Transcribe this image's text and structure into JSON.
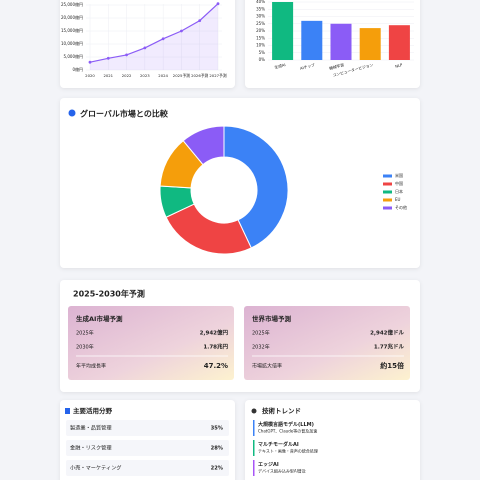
{
  "chart_data": [
    {
      "type": "line",
      "categories": [
        "2020",
        "2021",
        "2022",
        "2023",
        "2024",
        "2025予測",
        "2026予測",
        "2027予測"
      ],
      "values": [
        3000,
        4500,
        5800,
        8500,
        12000,
        15000,
        19000,
        25500
      ],
      "color": "#8b5cf6",
      "ylim": [
        0,
        26000
      ],
      "yticks": [
        {
          "value": 0,
          "label": "0億円"
        },
        {
          "value": 5000,
          "label": "5,000億円"
        },
        {
          "value": 10000,
          "label": "10,000億円"
        },
        {
          "value": 15000,
          "label": "15,000億円"
        },
        {
          "value": 20000,
          "label": "20,000億円"
        },
        {
          "value": 25000,
          "label": "25,000億円"
        }
      ],
      "grid": true
    },
    {
      "type": "bar",
      "categories": [
        "生成AI",
        "AIチップ",
        "機械学習",
        "コンピュータービジョン",
        "NLP"
      ],
      "values": [
        40,
        27,
        25,
        22,
        24
      ],
      "colors": [
        "#10b981",
        "#3b82f6",
        "#8b5cf6",
        "#f59e0b",
        "#ef4444"
      ],
      "ylim": [
        0,
        40
      ],
      "yticks": [
        {
          "value": 0,
          "label": "0%"
        },
        {
          "value": 5,
          "label": "5%"
        },
        {
          "value": 10,
          "label": "10%"
        },
        {
          "value": 15,
          "label": "15%"
        },
        {
          "value": 20,
          "label": "20%"
        },
        {
          "value": 25,
          "label": "25%"
        },
        {
          "value": 30,
          "label": "30%"
        },
        {
          "value": 35,
          "label": "35%"
        },
        {
          "value": 40,
          "label": "40%"
        }
      ],
      "grid": true
    },
    {
      "type": "pie",
      "title": "グローバル市場との比較",
      "categories": [
        "米国",
        "中国",
        "日本",
        "EU",
        "その他"
      ],
      "values": [
        43,
        25,
        8,
        13,
        11
      ],
      "colors": [
        "#3b82f6",
        "#ef4444",
        "#10b981",
        "#f59e0b",
        "#8b5cf6"
      ],
      "legend": "right"
    }
  ],
  "forecast": {
    "title": "2025-2030年予測",
    "cards": [
      {
        "title": "生成AI市場予測",
        "rows": [
          [
            "2025年",
            "2,942億円"
          ],
          [
            "2030年",
            "1.78兆円"
          ]
        ],
        "summary": [
          "年平均成長率",
          "47.2%"
        ],
        "summary_color": "#16a34a"
      },
      {
        "title": "世界市場予測",
        "rows": [
          [
            "2025年",
            "2,942億ドル"
          ],
          [
            "2032年",
            "1.77兆ドル"
          ]
        ],
        "summary": [
          "市場拡大倍率",
          "約15倍"
        ],
        "summary_color": "#9333ea"
      }
    ]
  },
  "fields": {
    "title": "主要活用分野",
    "rows": [
      [
        "製造業・品質管理",
        "35%"
      ],
      [
        "金融・リスク管理",
        "28%"
      ],
      [
        "小売・マーケティング",
        "22%"
      ]
    ],
    "colors": [
      "#2563eb",
      "#16a34a",
      "#9333ea"
    ]
  },
  "trends": {
    "title": "技術トレンド",
    "items": [
      [
        "大規模言語モデル(LLM)",
        "ChatGPT、Claude等の普及加速"
      ],
      [
        "マルチモーダルAI",
        "テキスト・画像・音声の統合処理"
      ],
      [
        "エッジAI",
        "デバイス組み込み型AI普及"
      ]
    ],
    "colors": [
      "#3b82f6",
      "#10b981",
      "#a855f7"
    ]
  }
}
